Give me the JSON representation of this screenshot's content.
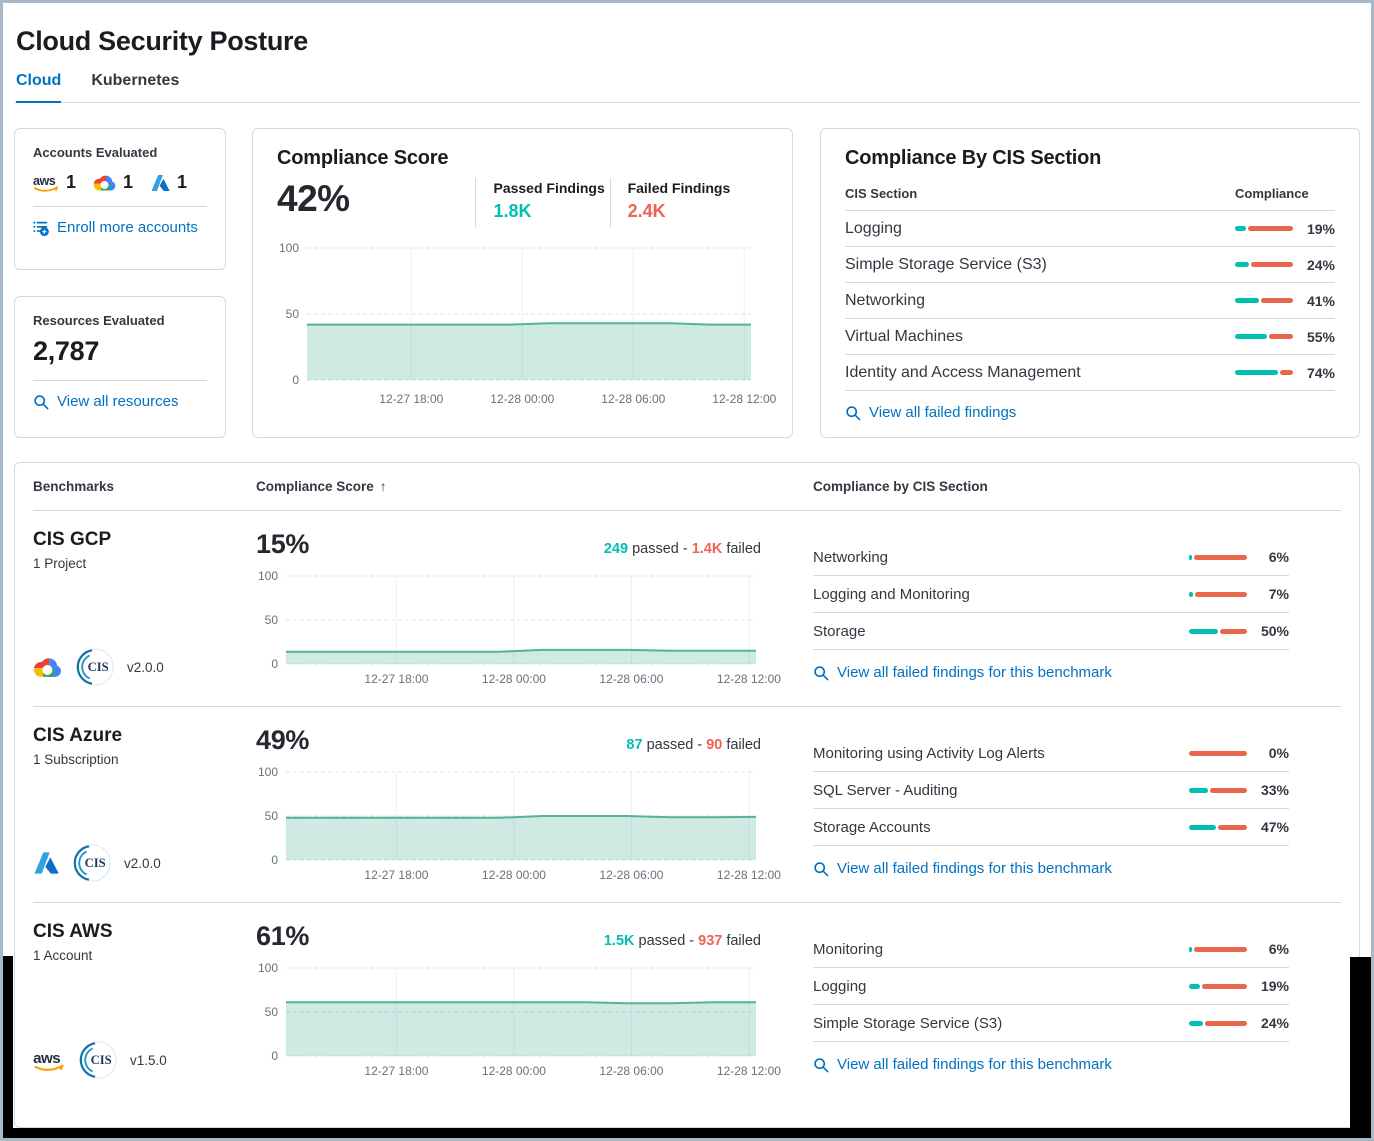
{
  "page": {
    "title": "Cloud Security Posture"
  },
  "tabs": [
    {
      "label": "Cloud"
    },
    {
      "label": "Kubernetes"
    }
  ],
  "strings": {
    "passed_word": "passed -",
    "failed_word": "failed",
    "benchmark_link": "View all failed findings for this benchmark"
  },
  "colors": {
    "accent_blue": "#0071c2",
    "teal": "#00bfb3",
    "red": "#e7664c",
    "chart_line": "#54b399",
    "chart_fill": "rgba(84,179,153,0.28)"
  },
  "accounts_card": {
    "title": "Accounts Evaluated",
    "providers": [
      {
        "name": "aws",
        "count": "1"
      },
      {
        "name": "gcp",
        "count": "1"
      },
      {
        "name": "azure",
        "count": "1"
      }
    ],
    "link": "Enroll more accounts"
  },
  "resources_card": {
    "title": "Resources Evaluated",
    "value": "2,787",
    "link": "View all resources"
  },
  "compliance_score_card": {
    "title": "Compliance Score",
    "score": "42%",
    "passed_label": "Passed Findings",
    "passed_value": "1.8K",
    "failed_label": "Failed Findings",
    "failed_value": "2.4K"
  },
  "cis_section_card": {
    "title": "Compliance By CIS Section",
    "col_section": "CIS Section",
    "col_compliance": "Compliance",
    "rows": [
      {
        "label": "Logging",
        "pct": 19,
        "pct_label": "19%"
      },
      {
        "label": "Simple Storage Service (S3)",
        "pct": 24,
        "pct_label": "24%"
      },
      {
        "label": "Networking",
        "pct": 41,
        "pct_label": "41%"
      },
      {
        "label": "Virtual Machines",
        "pct": 55,
        "pct_label": "55%"
      },
      {
        "label": "Identity and Access Management",
        "pct": 74,
        "pct_label": "74%"
      }
    ],
    "link": "View all failed findings"
  },
  "benchmarks_table": {
    "col1": "Benchmarks",
    "col2": "Compliance Score",
    "sort_arrow": "↑",
    "col3": "Compliance by CIS Section",
    "rows": [
      {
        "name": "CIS GCP",
        "subtitle": "1 Project",
        "provider": "gcp",
        "version": "v2.0.0",
        "score": "15%",
        "passed": "249",
        "failed": "1.4K",
        "sections": [
          {
            "label": "Networking",
            "pct": 6,
            "pct_label": "6%"
          },
          {
            "label": "Logging and Monitoring",
            "pct": 7,
            "pct_label": "7%"
          },
          {
            "label": "Storage",
            "pct": 50,
            "pct_label": "50%"
          }
        ]
      },
      {
        "name": "CIS Azure",
        "subtitle": "1 Subscription",
        "provider": "azure",
        "version": "v2.0.0",
        "score": "49%",
        "passed": "87",
        "failed": "90",
        "sections": [
          {
            "label": "Monitoring using Activity Log Alerts",
            "pct": 0,
            "pct_label": "0%"
          },
          {
            "label": "SQL Server - Auditing",
            "pct": 33,
            "pct_label": "33%"
          },
          {
            "label": "Storage Accounts",
            "pct": 47,
            "pct_label": "47%"
          }
        ]
      },
      {
        "name": "CIS AWS",
        "subtitle": "1 Account",
        "provider": "aws",
        "version": "v1.5.0",
        "score": "61%",
        "passed": "1.5K",
        "failed": "937",
        "sections": [
          {
            "label": "Monitoring",
            "pct": 6,
            "pct_label": "6%"
          },
          {
            "label": "Logging",
            "pct": 19,
            "pct_label": "19%"
          },
          {
            "label": "Simple Storage Service (S3)",
            "pct": 24,
            "pct_label": "24%"
          }
        ]
      }
    ]
  },
  "chart_data": [
    {
      "id": "overview-compliance-trend",
      "type": "area",
      "title": "Compliance Score 42%",
      "ylim": [
        0,
        100
      ],
      "yticks": [
        0,
        50,
        100
      ],
      "xticks": [
        "12-27 18:00",
        "12-28 00:00",
        "12-28 06:00",
        "12-28 12:00"
      ],
      "values": [
        42,
        42,
        42,
        42,
        42,
        42,
        43,
        43,
        43,
        43,
        42,
        42
      ]
    },
    {
      "id": "cis-gcp-trend",
      "type": "area",
      "title": "CIS GCP 15%",
      "ylim": [
        0,
        100
      ],
      "yticks": [
        0,
        50,
        100
      ],
      "xticks": [
        "12-27 18:00",
        "12-28 00:00",
        "12-28 06:00",
        "12-28 12:00"
      ],
      "values": [
        14,
        14,
        14,
        14,
        14,
        14,
        16,
        16,
        16,
        15,
        15,
        15
      ]
    },
    {
      "id": "cis-azure-trend",
      "type": "area",
      "title": "CIS Azure 49%",
      "ylim": [
        0,
        100
      ],
      "yticks": [
        0,
        50,
        100
      ],
      "xticks": [
        "12-27 18:00",
        "12-28 00:00",
        "12-28 06:00",
        "12-28 12:00"
      ],
      "values": [
        48,
        48,
        48,
        48,
        48,
        48,
        50,
        50,
        50,
        48.5,
        48.5,
        49
      ]
    },
    {
      "id": "cis-aws-trend",
      "type": "area",
      "title": "CIS AWS 61%",
      "ylim": [
        0,
        100
      ],
      "yticks": [
        0,
        50,
        100
      ],
      "xticks": [
        "12-27 18:00",
        "12-28 00:00",
        "12-28 06:00",
        "12-28 12:00"
      ],
      "values": [
        61,
        61,
        61,
        61,
        61,
        61,
        61,
        61,
        60,
        60,
        61,
        61
      ]
    }
  ]
}
